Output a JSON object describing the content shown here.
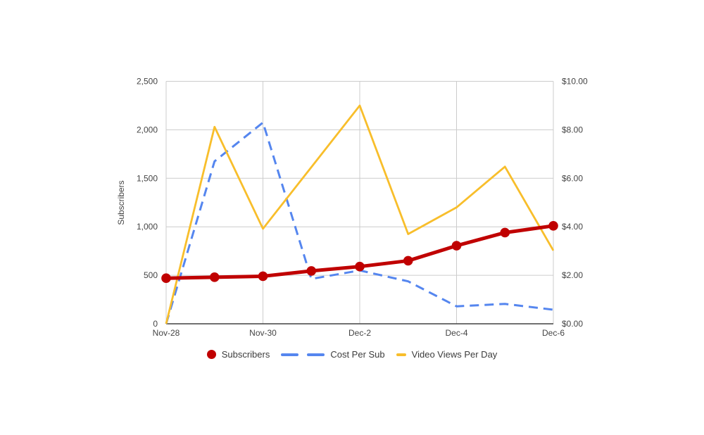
{
  "page": {
    "background": "#FFFFFF"
  },
  "chart_data": {
    "type": "line",
    "title": "",
    "x": [
      "Nov-28",
      "Nov-29",
      "Nov-30",
      "Dec-1",
      "Dec-2",
      "Dec-3",
      "Dec-4",
      "Dec-5",
      "Dec-6"
    ],
    "x_tick_labels": [
      "Nov-28",
      "Nov-30",
      "Dec-2",
      "Dec-4",
      "Dec-6"
    ],
    "left_axis": {
      "label": "Subscribers",
      "min": 0,
      "max": 2500,
      "ticks": [
        {
          "value": 0,
          "label": "0"
        },
        {
          "value": 500,
          "label": "500"
        },
        {
          "value": 1000,
          "label": "1,000"
        },
        {
          "value": 1500,
          "label": "1,500"
        },
        {
          "value": 2000,
          "label": "2,000"
        },
        {
          "value": 2500,
          "label": "2,500"
        }
      ]
    },
    "right_axis": {
      "label": "",
      "min": 0,
      "max": 10,
      "ticks": [
        {
          "value": 0,
          "label": "$0.00"
        },
        {
          "value": 2,
          "label": "$2.00"
        },
        {
          "value": 4,
          "label": "$4.00"
        },
        {
          "value": 6,
          "label": "$6.00"
        },
        {
          "value": 8,
          "label": "$8.00"
        },
        {
          "value": 10,
          "label": "$10.00"
        }
      ]
    },
    "series": [
      {
        "name": "Subscribers",
        "axis": "left",
        "style": "solid-points",
        "color": "#C00000",
        "values": [
          470,
          480,
          490,
          545,
          590,
          650,
          805,
          940,
          1010
        ]
      },
      {
        "name": "Cost Per Sub",
        "axis": "right",
        "style": "dashed",
        "color": "#5586EF",
        "values": [
          0.0,
          6.7,
          8.3,
          1.85,
          2.2,
          1.75,
          0.72,
          0.82,
          0.58
        ]
      },
      {
        "name": "Video Views Per Day",
        "axis": "left",
        "style": "solid",
        "color": "#F8BE2B",
        "values": [
          0,
          2030,
          980,
          1615,
          2250,
          925,
          1200,
          1620,
          755
        ]
      }
    ],
    "grid": true,
    "legend_position": "bottom",
    "colors": {
      "grid": "#CCCCCC",
      "axis_line": "#424242",
      "tick_text": "#444444",
      "background": "#FFFFFF"
    }
  },
  "legend": {
    "items": [
      {
        "label": "Subscribers",
        "swatch": "dot"
      },
      {
        "label": "Cost Per Sub",
        "swatch": "dashes"
      },
      {
        "label": "Video Views Per Day",
        "swatch": "dash"
      }
    ]
  }
}
